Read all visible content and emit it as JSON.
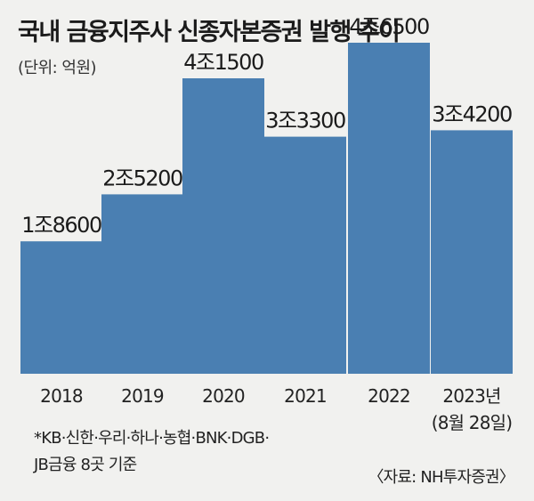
{
  "title": "국내 금융지주사 신종자본증권 발행 추이",
  "unit": "(단위: 억원)",
  "note_line1": "*KB·신한·우리·하나·농협·BNK·DGB·",
  "note_line2": "JB금융 8곳 기준",
  "source": "〈자료: NH투자증권〉",
  "colors": {
    "bar": "#4a7fb2",
    "background": "#f1f1ef",
    "text": "#222222"
  },
  "chart_data": {
    "type": "bar",
    "title": "국내 금융지주사 신종자본증권 발행 추이",
    "ylabel": "",
    "xlabel": "",
    "ylim": [
      0,
      50000
    ],
    "grid": false,
    "categories": [
      "2018",
      "2019",
      "2020",
      "2021",
      "2022",
      "2023년"
    ],
    "category_sublabels": [
      "",
      "",
      "",
      "",
      "",
      "(8월 28일)"
    ],
    "values": [
      18600,
      25200,
      41500,
      33300,
      46500,
      34200
    ],
    "data_labels": [
      "1조8600",
      "2조5200",
      "4조1500",
      "3조3300",
      "4조6500",
      "3조4200"
    ]
  }
}
